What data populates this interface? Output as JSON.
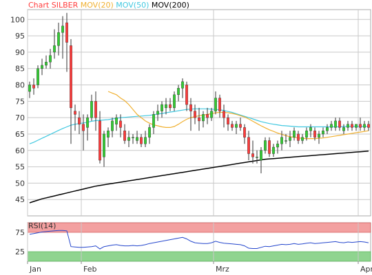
{
  "legend": [
    {
      "name": "Chart SILBER",
      "color": "#ff3b3b"
    },
    {
      "name": "MOV(20)",
      "color": "#f0b030"
    },
    {
      "name": "MOV(50)",
      "color": "#40c8e0"
    },
    {
      "name": "MOV(200)",
      "color": "#000000"
    }
  ],
  "chart_data": [
    {
      "type": "candlestick",
      "ylim": [
        40,
        103
      ],
      "y_ticks": [
        45,
        50,
        55,
        60,
        65,
        70,
        75,
        80,
        85,
        90,
        95,
        100
      ],
      "x_ticks": [
        "Jan",
        "Feb",
        "Mrz",
        "Apr"
      ],
      "x_tick_index": [
        0,
        13,
        45,
        80
      ],
      "grid": true,
      "up_color": "#33cc33",
      "down_color": "#ff3b3b",
      "candles": [
        [
          78,
          81,
          76,
          80
        ],
        [
          80,
          82,
          77,
          79
        ],
        [
          80,
          86,
          79,
          85
        ],
        [
          85,
          88,
          83,
          86
        ],
        [
          86,
          89,
          85,
          87
        ],
        [
          87,
          91,
          85,
          89
        ],
        [
          90,
          97,
          88,
          92
        ],
        [
          92,
          99,
          89,
          96
        ],
        [
          96,
          101,
          88,
          98
        ],
        [
          99,
          102,
          84,
          93
        ],
        [
          92,
          94,
          62,
          73
        ],
        [
          72,
          74,
          66,
          71
        ],
        [
          70,
          72,
          65,
          68
        ],
        [
          68,
          71,
          60,
          66
        ],
        [
          67,
          71,
          63,
          70
        ],
        [
          70,
          77,
          69,
          75
        ],
        [
          75,
          78,
          66,
          70
        ],
        [
          69,
          72,
          56,
          57
        ],
        [
          58,
          66,
          55,
          65
        ],
        [
          64,
          67,
          61,
          66
        ],
        [
          66,
          70,
          64,
          69
        ],
        [
          68,
          71,
          66,
          70
        ],
        [
          69,
          71,
          64,
          67
        ],
        [
          66,
          68,
          62,
          63
        ],
        [
          63,
          66,
          61,
          64
        ],
        [
          64,
          65,
          62,
          64
        ],
        [
          63,
          66,
          62,
          64
        ],
        [
          64,
          65,
          61,
          62
        ],
        [
          62,
          66,
          61,
          64
        ],
        [
          64,
          68,
          62,
          67
        ],
        [
          67,
          72,
          65,
          71
        ],
        [
          71,
          74,
          69,
          72
        ],
        [
          72,
          75,
          70,
          74
        ],
        [
          73,
          76,
          71,
          74
        ],
        [
          74,
          76,
          72,
          73
        ],
        [
          73,
          78,
          72,
          77
        ],
        [
          77,
          80,
          75,
          79
        ],
        [
          79,
          82,
          76,
          81
        ],
        [
          80,
          81,
          72,
          74
        ],
        [
          74,
          76,
          66,
          72
        ],
        [
          72,
          74,
          68,
          70
        ],
        [
          70,
          73,
          66,
          69
        ],
        [
          69,
          72,
          67,
          71
        ],
        [
          71,
          73,
          68,
          70
        ],
        [
          70,
          73,
          69,
          72
        ],
        [
          72,
          78,
          71,
          76
        ],
        [
          76,
          77,
          70,
          72
        ],
        [
          72,
          74,
          67,
          70
        ],
        [
          70,
          71,
          66,
          68
        ],
        [
          68,
          69,
          66,
          67
        ],
        [
          67,
          69,
          65,
          68
        ],
        [
          68,
          70,
          66,
          67
        ],
        [
          67,
          68,
          62,
          64
        ],
        [
          64,
          66,
          57,
          59
        ],
        [
          59,
          63,
          56,
          58
        ],
        [
          58,
          60,
          56,
          58
        ],
        [
          57,
          61,
          53,
          60
        ],
        [
          60,
          64,
          59,
          63
        ],
        [
          63,
          64,
          58,
          59
        ],
        [
          59,
          62,
          58,
          61
        ],
        [
          61,
          63,
          59,
          62
        ],
        [
          62,
          66,
          60,
          64
        ],
        [
          63,
          65,
          62,
          63
        ],
        [
          63,
          66,
          61,
          64
        ],
        [
          64,
          67,
          63,
          66
        ],
        [
          65,
          66,
          62,
          63
        ],
        [
          63,
          65,
          62,
          64
        ],
        [
          64,
          67,
          63,
          66
        ],
        [
          66,
          68,
          64,
          67
        ],
        [
          66,
          67,
          63,
          64
        ],
        [
          64,
          66,
          62,
          65
        ],
        [
          65,
          67,
          64,
          66
        ],
        [
          66,
          68,
          65,
          67
        ],
        [
          67,
          69,
          66,
          68
        ],
        [
          67,
          70,
          66,
          69
        ],
        [
          69,
          70,
          66,
          67
        ],
        [
          66,
          68,
          65,
          67
        ],
        [
          67,
          69,
          66,
          68
        ],
        [
          68,
          69,
          66,
          67
        ],
        [
          67,
          68,
          66,
          68
        ],
        [
          68,
          70,
          66,
          67
        ],
        [
          67,
          69,
          66,
          68
        ],
        [
          68,
          69,
          66,
          67
        ]
      ],
      "mov20": [
        null,
        null,
        null,
        null,
        null,
        null,
        null,
        null,
        null,
        null,
        null,
        null,
        null,
        null,
        null,
        null,
        null,
        null,
        null,
        78,
        77.5,
        77,
        76,
        75.2,
        74,
        72.5,
        71,
        70,
        69,
        68.3,
        67.8,
        67.5,
        67.2,
        67,
        67,
        67.3,
        68,
        68.8,
        69.5,
        70,
        70.3,
        70.6,
        70.8,
        71,
        71.2,
        71.5,
        71.6,
        71.6,
        71.5,
        71.3,
        71,
        70.6,
        70.2,
        69.6,
        68.9,
        68.2,
        67.5,
        66.9,
        66.3,
        65.8,
        65.3,
        64.9,
        64.5,
        64.2,
        64,
        63.8,
        63.7,
        63.6,
        63.6,
        63.6,
        63.7,
        63.8,
        64,
        64.2,
        64.4,
        64.6,
        64.8,
        65,
        65.2,
        65.4,
        65.6,
        65.8,
        66
      ],
      "mov50": [
        62,
        62.5,
        63.1,
        63.7,
        64.3,
        64.9,
        65.5,
        66.1,
        66.7,
        67.2,
        67.7,
        68,
        68.2,
        68.4,
        68.6,
        68.9,
        69.1,
        69.2,
        69.3,
        69.4,
        69.6,
        69.8,
        70,
        70.1,
        70.2,
        70.3,
        70.4,
        70.5,
        70.6,
        70.7,
        70.9,
        71.1,
        71.3,
        71.5,
        71.7,
        71.9,
        72.1,
        72.3,
        72.5,
        72.6,
        72.7,
        72.7,
        72.7,
        72.7,
        72.6,
        72.5,
        72.4,
        72.2,
        71.9,
        71.6,
        71.2,
        70.8,
        70.4,
        70,
        69.6,
        69.2,
        68.8,
        68.5,
        68.2,
        68,
        67.8,
        67.6,
        67.5,
        67.4,
        67.3,
        67.2,
        67.2,
        67.2,
        67.2,
        67.2,
        67.2,
        67.2,
        67.2,
        67.2,
        67.2,
        67.2,
        67.3,
        67.3,
        67.3,
        67.3,
        67.3,
        67.3,
        67.3
      ],
      "mov200": [
        44,
        44.4,
        44.8,
        45.2,
        45.5,
        45.8,
        46.1,
        46.4,
        46.7,
        47,
        47.3,
        47.6,
        47.9,
        48.2,
        48.5,
        48.8,
        49.1,
        49.3,
        49.5,
        49.7,
        49.9,
        50.1,
        50.3,
        50.5,
        50.7,
        50.9,
        51.1,
        51.3,
        51.5,
        51.7,
        51.9,
        52.1,
        52.3,
        52.5,
        52.7,
        52.9,
        53.1,
        53.3,
        53.5,
        53.7,
        53.9,
        54.1,
        54.3,
        54.5,
        54.7,
        54.9,
        55.1,
        55.3,
        55.5,
        55.7,
        55.9,
        56.1,
        56.3,
        56.5,
        56.7,
        56.9,
        57.1,
        57.3,
        57.4,
        57.5,
        57.6,
        57.7,
        57.8,
        57.9,
        58,
        58.1,
        58.2,
        58.3,
        58.4,
        58.5,
        58.6,
        58.7,
        58.8,
        58.9,
        59,
        59.1,
        59.2,
        59.3,
        59.4,
        59.5,
        59.6,
        59.7,
        59.8
      ]
    },
    {
      "type": "line",
      "title": "RSI(14)",
      "ylim": [
        0,
        100
      ],
      "y_ticks": [
        25,
        75
      ],
      "upper_band": [
        75,
        100
      ],
      "lower_band": [
        0,
        25
      ],
      "upper_band_color": "#f3a0a0",
      "lower_band_color": "#8fd48f",
      "line_color": "#2244cc",
      "values": [
        70,
        72,
        74,
        76,
        77,
        78,
        79,
        80,
        80,
        79,
        38,
        37,
        36,
        36,
        37,
        38,
        40,
        32,
        38,
        40,
        42,
        43,
        41,
        40,
        40,
        41,
        40,
        41,
        43,
        46,
        48,
        50,
        52,
        54,
        56,
        58,
        60,
        62,
        58,
        52,
        48,
        47,
        46,
        46,
        48,
        52,
        49,
        47,
        46,
        45,
        44,
        43,
        40,
        34,
        33,
        33,
        36,
        39,
        38,
        40,
        42,
        44,
        43,
        44,
        46,
        44,
        45,
        47,
        48,
        46,
        47,
        48,
        49,
        50,
        51,
        49,
        48,
        50,
        49,
        50,
        51,
        50,
        48
      ]
    }
  ]
}
